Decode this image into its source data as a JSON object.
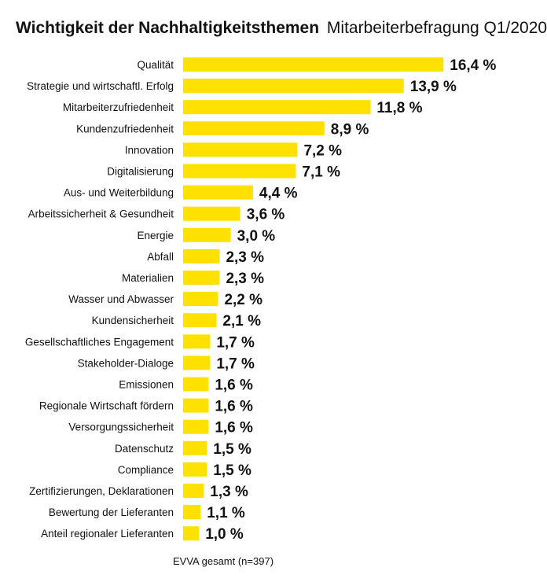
{
  "header": {
    "title": "Wichtigkeit der Nachhaltigkeitsthemen",
    "subtitle": "Mitarbeiterbefragung Q1/2020"
  },
  "footnote": "EVVA gesamt (n=397)",
  "colors": {
    "bar": "#FFE100",
    "text": "#111111"
  },
  "chart_data": {
    "type": "bar",
    "orientation": "horizontal",
    "title": "Wichtigkeit der Nachhaltigkeitsthemen",
    "subtitle": "Mitarbeiterbefragung Q1/2020",
    "xlabel": "",
    "ylabel": "",
    "unit": "%",
    "grid": false,
    "legend": "none",
    "categories": [
      "Qualität",
      "Strategie und wirtschaftl. Erfolg",
      "Mitarbeiterzufriedenheit",
      "Kundenzufriedenheit",
      "Innovation",
      "Digitalisierung",
      "Aus- und Weiterbildung",
      "Arbeitssicherheit & Gesundheit",
      "Energie",
      "Abfall",
      "Materialien",
      "Wasser und Abwasser",
      "Kundensicherheit",
      "Gesellschaftliches Engagement",
      "Stakeholder-Dialoge",
      "Emissionen",
      "Regionale Wirtschaft fördern",
      "Versorgungssicherheit",
      "Datenschutz",
      "Compliance",
      "Zertifizierungen, Deklarationen",
      "Bewertung der Lieferanten",
      "Anteil regionaler Lieferanten"
    ],
    "values": [
      16.4,
      13.9,
      11.8,
      8.9,
      7.2,
      7.1,
      4.4,
      3.6,
      3.0,
      2.3,
      2.3,
      2.2,
      2.1,
      1.7,
      1.7,
      1.6,
      1.6,
      1.6,
      1.5,
      1.5,
      1.3,
      1.1,
      1.0
    ],
    "value_labels": [
      "16,4 %",
      "13,9 %",
      "11,8 %",
      "8,9 %",
      "7,2 %",
      "7,1 %",
      "4,4 %",
      "3,6 %",
      "3,0 %",
      "2,3 %",
      "2,3 %",
      "2,2 %",
      "2,1 %",
      "1,7 %",
      "1,7 %",
      "1,6 %",
      "1,6 %",
      "1,6 %",
      "1,5 %",
      "1,5 %",
      "1,3 %",
      "1,1 %",
      "1,0 %"
    ]
  }
}
